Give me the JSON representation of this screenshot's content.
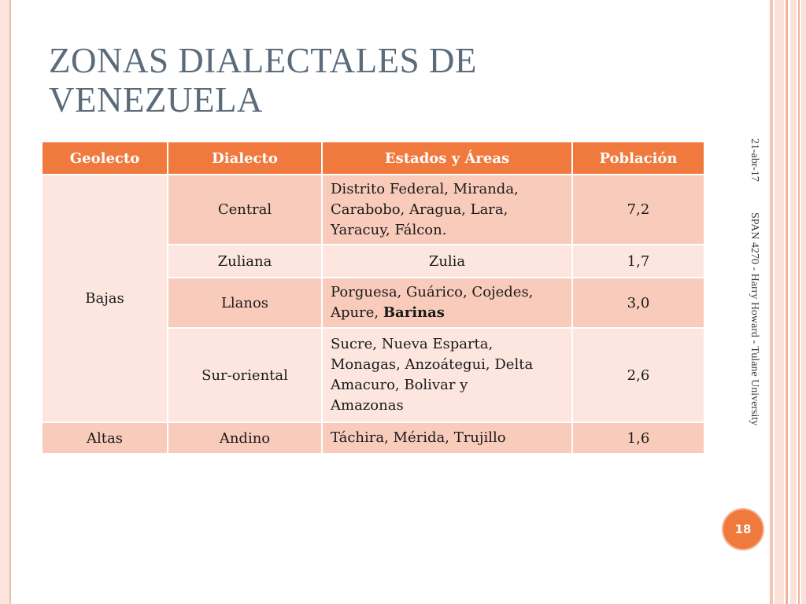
{
  "slide": {
    "title_line1": "ZONAS DIALECTALES DE",
    "title_line2": "VENEZUELA",
    "date": "21-abr-17",
    "footer": "SPAN 4270 - Harry Howard - Tulane University",
    "page_number": "18"
  },
  "table": {
    "headers": [
      "Geolecto",
      "Dialecto",
      "Estados y Áreas",
      "Población"
    ],
    "groups": [
      {
        "geolecto": "Bajas",
        "rows": [
          {
            "dialecto": "Central",
            "estados": [
              "Distrito Federal, Miranda,",
              "Carabobo, Aragua, Lara,",
              "Yaracuy, Fálcon."
            ],
            "estados_bold": "",
            "poblacion": "7,2"
          },
          {
            "dialecto": "Zuliana",
            "estados": [
              "Zulia"
            ],
            "estados_bold": "",
            "poblacion": "1,7"
          },
          {
            "dialecto": "Llanos",
            "estados": [
              "Porguesa, Guárico, Cojedes,",
              "Apure, "
            ],
            "estados_bold": "Barinas",
            "poblacion": "3,0"
          },
          {
            "dialecto": "Sur-oriental",
            "estados": [
              "Sucre, Nueva Esparta,",
              "Monagas, Anzoátegui, Delta",
              "Amacuro, Bolivar y",
              "Amazonas"
            ],
            "estados_bold": "",
            "poblacion": "2,6"
          }
        ]
      },
      {
        "geolecto": "Altas",
        "rows": [
          {
            "dialecto": "Andino",
            "estados": [
              "Táchira, Mérida, Trujillo"
            ],
            "estados_bold": "",
            "poblacion": "1,6"
          }
        ]
      }
    ]
  },
  "colors": {
    "header_bg": "#f07a3e",
    "row_dark": "#f8cbbb",
    "row_light": "#fce6df",
    "title": "#5c6b7a",
    "accent": "#f07a3e"
  }
}
